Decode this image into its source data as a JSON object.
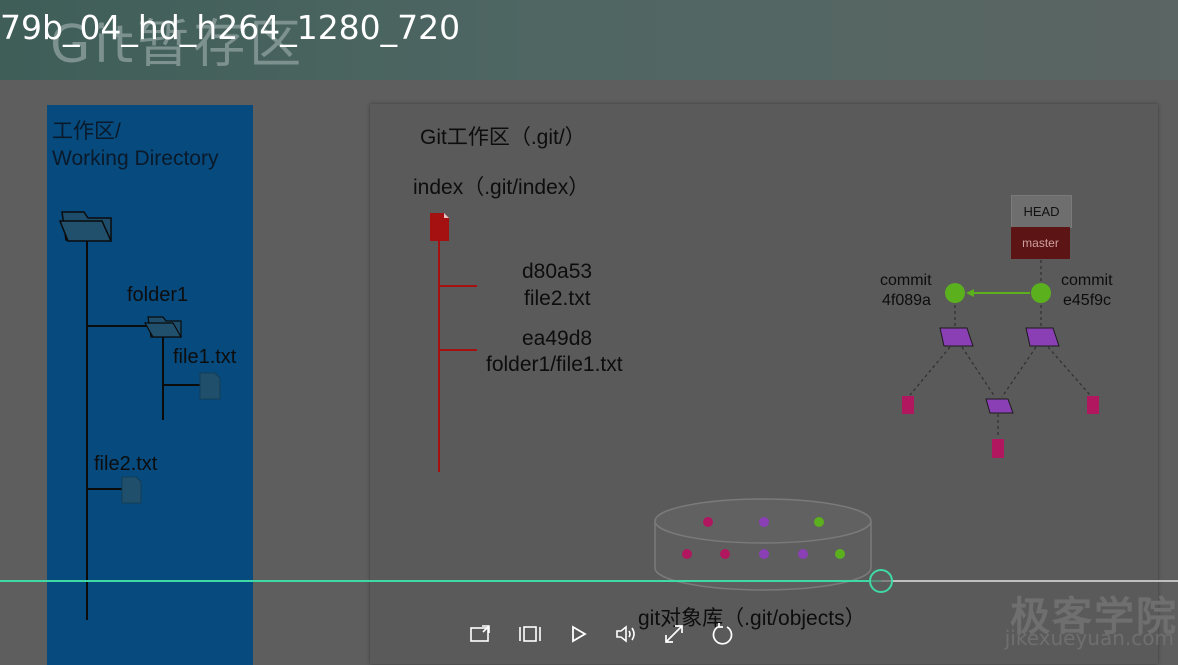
{
  "video": {
    "title": "79b_04_hd_h264_1280_720",
    "background_slide_title": "Git暂存区",
    "progress": 0.748
  },
  "working_directory": {
    "title": "工作区/\nWorking Directory",
    "folder1_label": "folder1",
    "file1_label": "file1.txt",
    "file2_label": "file2.txt"
  },
  "git_area": {
    "title": "Git工作区（.git/）",
    "index_title": "index（.git/index）",
    "entries": [
      {
        "hash": "d80a53",
        "path": "file2.txt"
      },
      {
        "hash": "ea49d8",
        "path": "folder1/file1.txt"
      }
    ],
    "head_label": "HEAD",
    "master_label": "master",
    "commits": [
      {
        "label": "commit",
        "hash": "4f089a"
      },
      {
        "label": "commit",
        "hash": "e45f9c"
      }
    ],
    "objects_label": "git对象库（.git/objects）"
  },
  "watermark": {
    "main": "极客学院",
    "sub": "jikexueyuan.com"
  },
  "controls": {
    "icons": [
      "screen-share-icon",
      "subtitle-icon",
      "play-icon",
      "volume-icon",
      "fullscreen-icon",
      "replay-icon"
    ]
  },
  "colors": {
    "accent": "#3fd9a6",
    "workdir_blue": "#064a7e",
    "index_red": "#a51010",
    "commit_green": "#5bb01e",
    "tree_purple": "#8a3fb5",
    "blob_magenta": "#b0175f"
  }
}
